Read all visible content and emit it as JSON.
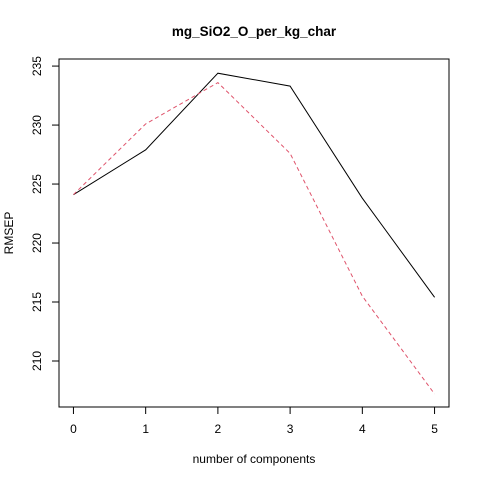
{
  "chart_data": {
    "type": "line",
    "title": "mg_SiO2_O_per_kg_char",
    "xlabel": "number of components",
    "ylabel": "RMSEP",
    "x": [
      0,
      1,
      2,
      3,
      4,
      5
    ],
    "xticks": [
      "0",
      "1",
      "2",
      "3",
      "4",
      "5"
    ],
    "yticks": [
      "210",
      "215",
      "220",
      "225",
      "230",
      "235"
    ],
    "xlim": [
      -0.2,
      5.2
    ],
    "ylim": [
      206.1,
      235.6
    ],
    "grid": false,
    "legend": "none",
    "series": [
      {
        "style": "solid",
        "color": "#000000",
        "values": [
          224.1,
          227.9,
          234.4,
          233.3,
          223.8,
          215.4
        ]
      },
      {
        "style": "dashed",
        "color": "#DF536B",
        "values": [
          224.1,
          230.1,
          233.6,
          227.6,
          215.5,
          207.2
        ]
      }
    ]
  }
}
